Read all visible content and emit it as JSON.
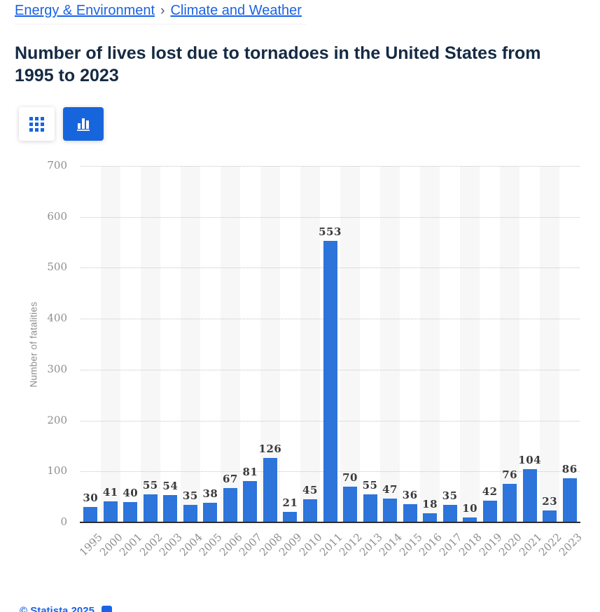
{
  "breadcrumb": {
    "items": [
      {
        "label": "Energy & Environment"
      },
      {
        "label": "Climate and Weather"
      }
    ],
    "separator": "›"
  },
  "title": "Number of lives lost due to tornadoes in the United States from 1995 to 2023",
  "toolbar": {
    "buttons": [
      {
        "name": "table-view",
        "icon": "grid-icon",
        "selected": false
      },
      {
        "name": "chart-view",
        "icon": "bar-chart-icon",
        "selected": true
      }
    ]
  },
  "chart_data": {
    "type": "bar",
    "title": "Number of lives lost due to tornadoes in the United States from 1995 to 2023",
    "categories": [
      "1995",
      "2000",
      "2001",
      "2002",
      "2003",
      "2004",
      "2005",
      "2006",
      "2007",
      "2008",
      "2009",
      "2010",
      "2011",
      "2012",
      "2013",
      "2014",
      "2015",
      "2016",
      "2017",
      "2018",
      "2019",
      "2020",
      "2021",
      "2022",
      "2023"
    ],
    "values": [
      30,
      41,
      40,
      55,
      54,
      35,
      38,
      67,
      81,
      126,
      21,
      45,
      553,
      70,
      55,
      47,
      36,
      18,
      35,
      10,
      42,
      76,
      104,
      23,
      86
    ],
    "xlabel": "",
    "ylabel": "Number of fatalities",
    "ylim": [
      0,
      700
    ],
    "yticks": [
      0,
      100,
      200,
      300,
      400,
      500,
      600,
      700
    ],
    "grid": "horizontal-dotted",
    "legend": "none",
    "bar_color": "#2d74db",
    "band_color": "#f7f7f7",
    "axis_label_color": "#8f8f8f",
    "value_label_color": "#3a3a3a"
  },
  "footer": {
    "copyright": "© Statista 2025"
  },
  "colors": {
    "accent_blue": "#1765dc",
    "link_blue": "#1a63e6",
    "title_navy": "#152a44"
  }
}
